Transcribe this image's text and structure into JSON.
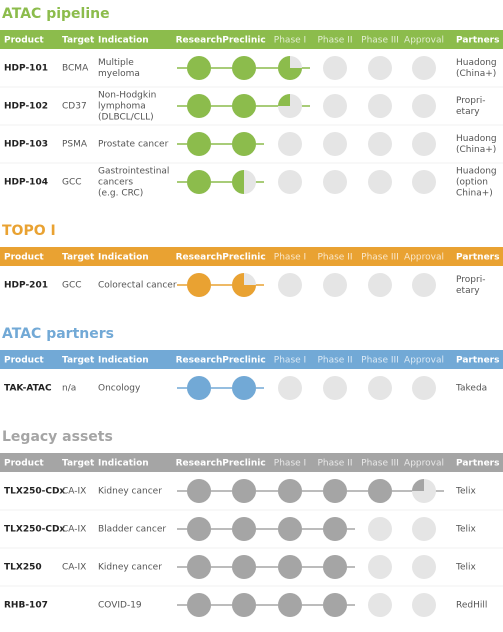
{
  "sections": [
    {
      "title": "ATAC pipeline",
      "color": "#8cbc4c",
      "columns": [
        "Product",
        "Target",
        "Indication",
        "Research",
        "Preclinic",
        "Phase I",
        "Phase II",
        "Phase III",
        "Approval",
        "Partners"
      ],
      "rows": [
        {
          "product": "HDP-101",
          "target": "BCMA",
          "indication": [
            "Multiple",
            "myeloma"
          ],
          "progress": [
            1,
            1,
            0.75,
            0,
            0,
            0
          ],
          "partners": [
            "Huadong",
            "(China+)"
          ]
        },
        {
          "product": "HDP-102",
          "target": "CD37",
          "indication": [
            "Non-Hodgkin",
            "lymphoma",
            "(DLBCL/CLL)"
          ],
          "progress": [
            1,
            1,
            0.25,
            0,
            0,
            0
          ],
          "partners": [
            "Propri-",
            "etary"
          ]
        },
        {
          "product": "HDP-103",
          "target": "PSMA",
          "indication": [
            "Prostate cancer"
          ],
          "progress": [
            1,
            1,
            0,
            0,
            0,
            0
          ],
          "partners": [
            "Huadong",
            "(China+)"
          ]
        },
        {
          "product": "HDP-104",
          "target": "GCC",
          "indication": [
            "Gastrointestinal",
            "cancers",
            "(e.g. CRC)"
          ],
          "progress": [
            1,
            0.5,
            0,
            0,
            0,
            0
          ],
          "partners": [
            "Huadong",
            "(option",
            "China+)"
          ]
        }
      ]
    },
    {
      "title": "TOPO I",
      "color": "#e9a232",
      "columns": [
        "Product",
        "Target",
        "Indication",
        "Research",
        "Preclinic",
        "Phase I",
        "Phase II",
        "Phase III",
        "Approval",
        "Partners"
      ],
      "rows": [
        {
          "product": "HDP-201",
          "target": "GCC",
          "indication": [
            "Colorectal cancer"
          ],
          "progress": [
            1,
            0.75,
            0,
            0,
            0,
            0
          ],
          "partners": [
            "Propri-",
            "etary"
          ]
        }
      ]
    },
    {
      "title": "ATAC partners",
      "color": "#72a9d6",
      "columns": [
        "Product",
        "Target",
        "Indication",
        "Research",
        "Preclinic",
        "Phase I",
        "Phase II",
        "Phase III",
        "Approval",
        "Partners"
      ],
      "rows": [
        {
          "product": "TAK-ATAC",
          "target": "n/a",
          "indication": [
            "Oncology"
          ],
          "progress": [
            1,
            1,
            0,
            0,
            0,
            0
          ],
          "partners": [
            "Takeda"
          ]
        }
      ]
    },
    {
      "title": "Legacy assets",
      "color": "#a5a5a5",
      "columns": [
        "Product",
        "Target",
        "Indication",
        "Research",
        "Preclinic",
        "Phase I",
        "Phase II",
        "Phase III",
        "Approval",
        "Partners"
      ],
      "rows": [
        {
          "product": "TLX250-CDx",
          "target": "CA-IX",
          "indication": [
            "Kidney cancer"
          ],
          "progress": [
            1,
            1,
            1,
            1,
            1,
            0.25
          ],
          "partners": [
            "Telix"
          ]
        },
        {
          "product": "TLX250-CDx",
          "target": "CA-IX",
          "indication": [
            "Bladder cancer"
          ],
          "progress": [
            1,
            1,
            1,
            1,
            0,
            0
          ],
          "partners": [
            "Telix"
          ]
        },
        {
          "product": "TLX250",
          "target": "CA-IX",
          "indication": [
            "Kidney cancer"
          ],
          "progress": [
            1,
            1,
            1,
            1,
            0,
            0
          ],
          "partners": [
            "Telix"
          ]
        },
        {
          "product": "RHB-107",
          "target": null,
          "indication": [
            "COVID-19"
          ],
          "progress": [
            1,
            1,
            1,
            1,
            0,
            0
          ],
          "partners": [
            "RedHill"
          ]
        }
      ]
    }
  ]
}
